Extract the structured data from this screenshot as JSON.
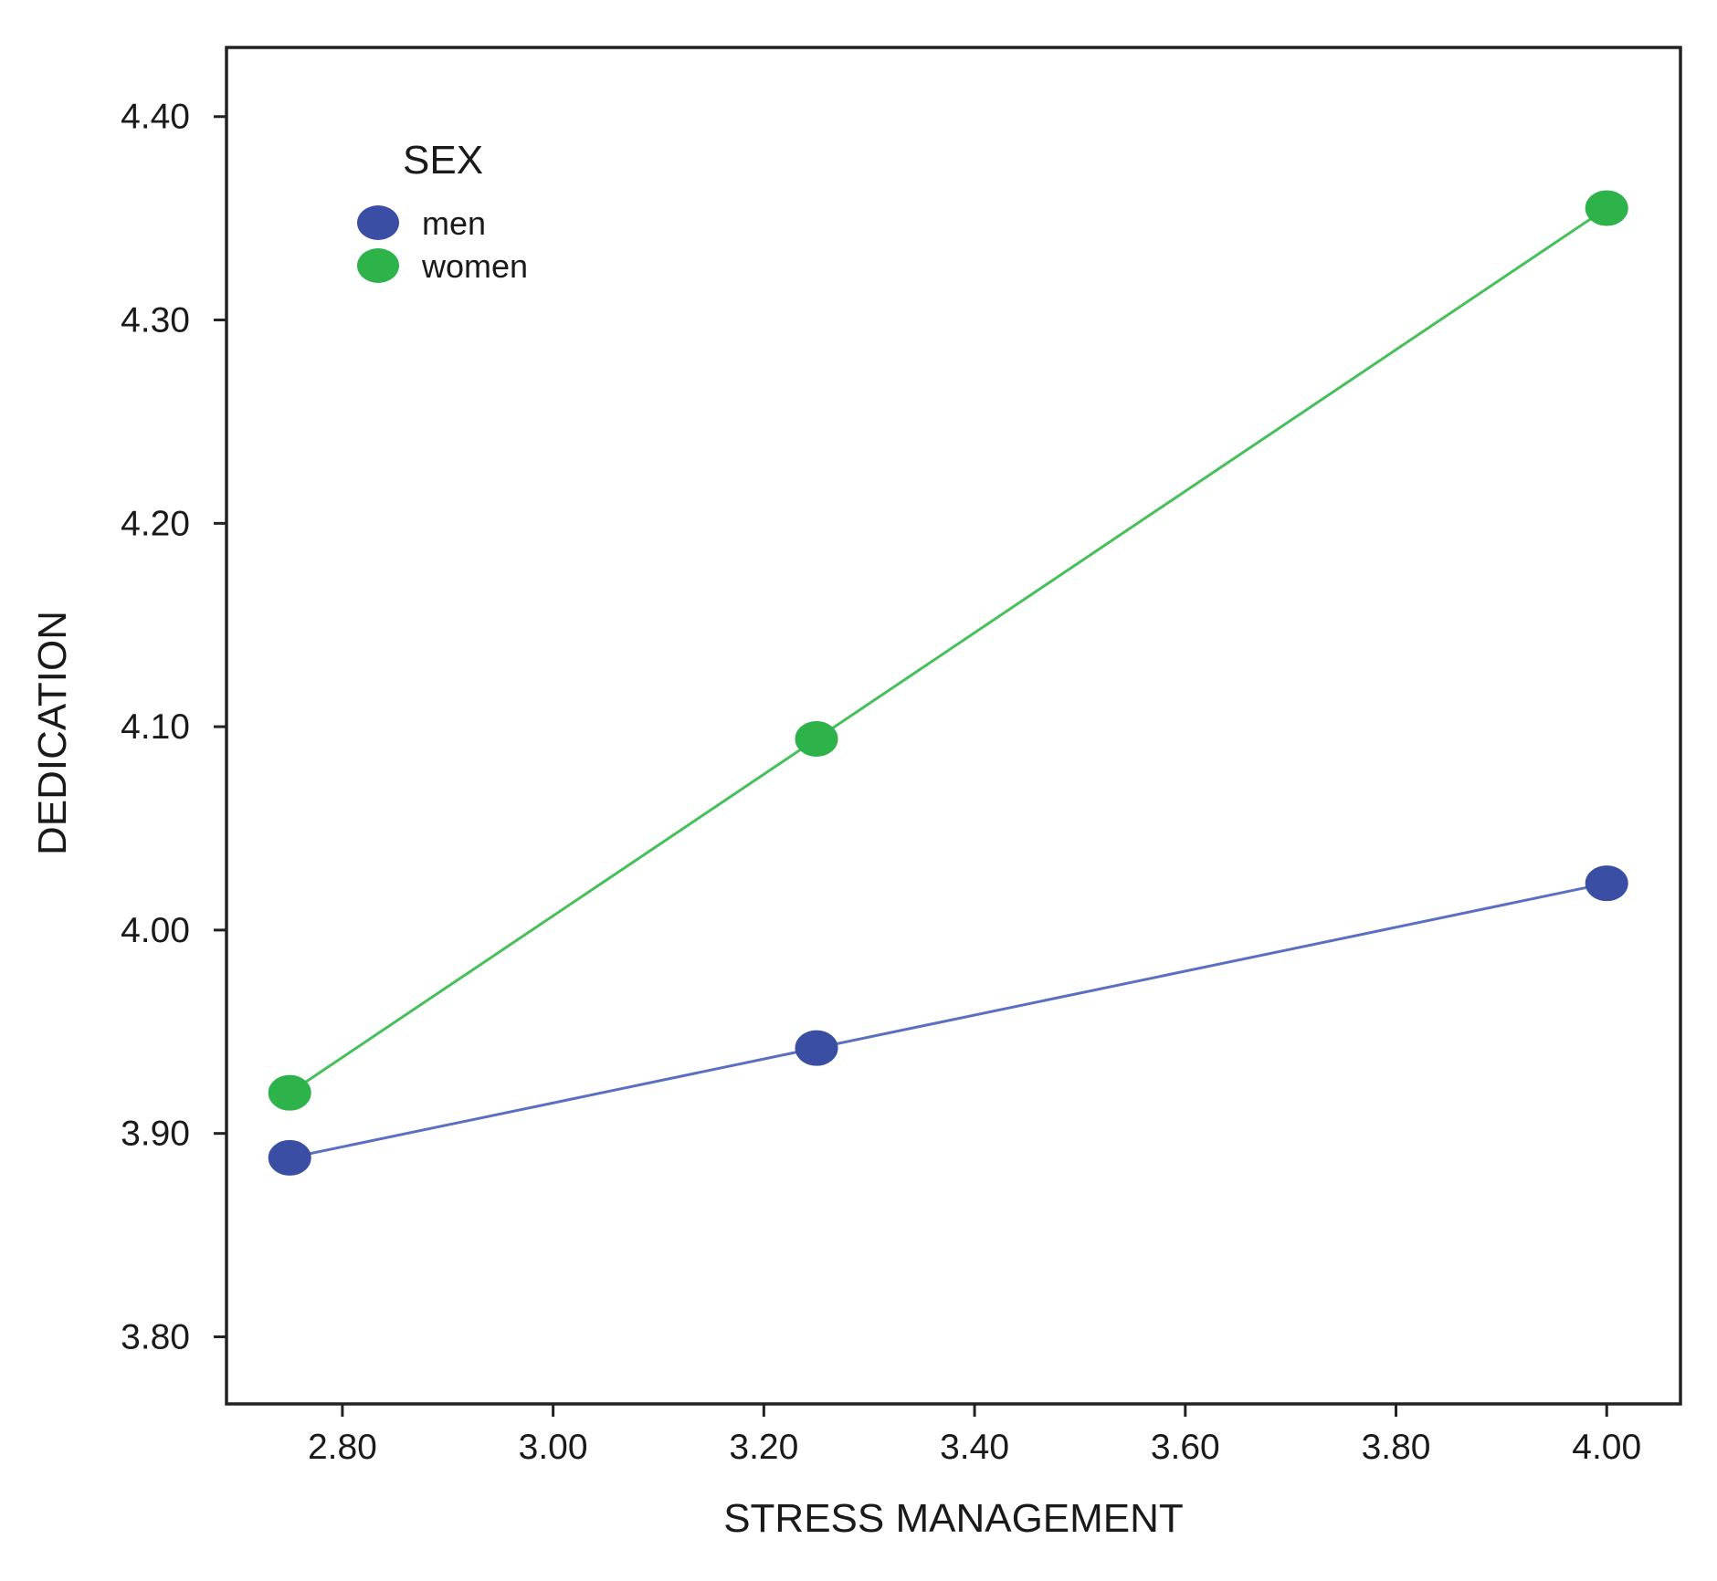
{
  "chart_data": {
    "type": "line",
    "title": "",
    "xlabel": "STRESS MANAGEMENT",
    "ylabel": "DEDICATION",
    "xlim": [
      2.69,
      4.07
    ],
    "ylim": [
      3.767,
      4.434
    ],
    "x_ticks": [
      2.8,
      3.0,
      3.2,
      3.4,
      3.6,
      3.8,
      4.0
    ],
    "x_tick_labels": [
      "2.80",
      "3.00",
      "3.20",
      "3.40",
      "3.60",
      "3.80",
      "4.00"
    ],
    "y_ticks": [
      3.8,
      3.9,
      4.0,
      4.1,
      4.2,
      4.3,
      4.4
    ],
    "y_tick_labels": [
      "3.80",
      "3.90",
      "4.00",
      "4.10",
      "4.20",
      "4.30",
      "4.40"
    ],
    "grid": false,
    "legend": {
      "title": "SEX",
      "position": "top-left"
    },
    "x": [
      2.75,
      3.25,
      4.0
    ],
    "series": [
      {
        "name": "men",
        "color": "#3a4fa3",
        "line_color": "#5b6fc2",
        "values": [
          3.888,
          3.942,
          4.023
        ]
      },
      {
        "name": "women",
        "color": "#2db34a",
        "line_color": "#45c05a",
        "values": [
          3.92,
          4.094,
          4.355
        ]
      }
    ]
  }
}
